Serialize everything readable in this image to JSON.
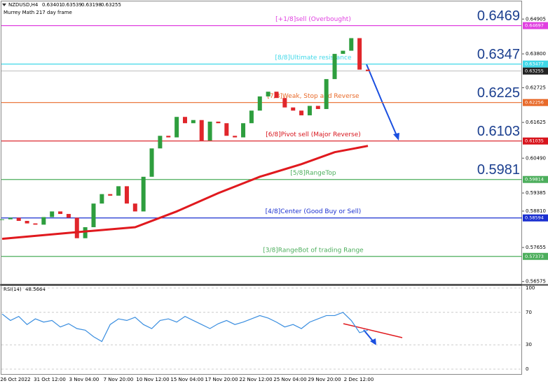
{
  "chart_data": {
    "type": "candlestick",
    "title": "NZDUSD,H4",
    "quote": [
      0.63401,
      0.63539,
      0.63198,
      0.63255
    ],
    "subtitle": "Murrey Math 217 day frame",
    "up_color": "#2e9e3e",
    "down_color": "#e0262b",
    "values": [
      0.5855,
      0.586,
      0.585,
      0.5842,
      0.5838,
      0.5862,
      0.588,
      0.5872,
      0.586,
      0.5795,
      0.583,
      0.5905,
      0.5935,
      0.593,
      0.596,
      0.5905,
      0.588,
      0.599,
      0.608,
      0.612,
      0.6115,
      0.618,
      0.616,
      0.617,
      0.6105,
      0.6165,
      0.616,
      0.612,
      0.6115,
      0.616,
      0.62,
      0.6245,
      0.626,
      0.624,
      0.621,
      0.62,
      0.6185,
      0.6215,
      0.6205,
      0.63,
      0.638,
      0.639,
      0.643,
      0.633,
      0.63255
    ],
    "moving_average": {
      "color": "#e0191e",
      "x": [
        0,
        8,
        16,
        21,
        26,
        31,
        36,
        40,
        44
      ],
      "values": [
        0.5793,
        0.5812,
        0.583,
        0.588,
        0.5938,
        0.599,
        0.603,
        0.6068,
        0.6088
      ]
    },
    "current_price": 0.63255,
    "ylim": [
      0.5648,
      0.6551
    ],
    "yticks": [
      0.64905,
      {
        "value": 0.638,
        "label": "0.63800"
      },
      0.62725,
      0.61625,
      {
        "value": 0.6049,
        "label": "0.60490"
      },
      0.59385,
      {
        "value": 0.5881,
        "label": "0.58810"
      },
      0.57655,
      0.56575
    ],
    "levels": [
      {
        "name": "[+1/8]sell (Overbought)",
        "value": 0.64697,
        "label": "0.6469",
        "color": "#e040e0"
      },
      {
        "name": "[8/8]Ultimate resistance",
        "value": 0.63477,
        "label": "0.6347",
        "color": "#40d8e8"
      },
      {
        "name": "[7/8]Weak, Stop and Reverse",
        "value": 0.62256,
        "label": "0.6225",
        "color": "#e86a2a"
      },
      {
        "name": "[6/8]Pivot sell (Major Reverse)",
        "value": 0.61035,
        "label": "0.6103",
        "color": "#d8141c"
      },
      {
        "name": "[5/8]RangeTop",
        "value": 0.59814,
        "label": "0.5981",
        "color": "#4cae5c"
      },
      {
        "name": "[4/8]Center (Good Buy or Sell)",
        "value": 0.58594,
        "color": "#1a2fd0"
      },
      {
        "name": "[3/8]RangeBot of trading Range",
        "value": 0.57373,
        "color": "#4cae5c"
      }
    ],
    "x_labels": [
      "26 Oct 2022",
      "31 Oct 12:00",
      "3 Nov 04:00",
      "7 Nov 20:00",
      "10 Nov 12:00",
      "15 Nov 04:00",
      "17 Nov 20:00",
      "22 Nov 12:00",
      "25 Nov 04:00",
      "29 Nov 20:00",
      "2 Dec 12:00"
    ],
    "rsi": {
      "title": "RSI(14)",
      "value": 48.5664,
      "color": "#3a8ee0",
      "ylim": [
        0,
        100
      ],
      "yticks": [
        100,
        70,
        30,
        0
      ],
      "values": [
        68,
        60,
        65,
        55,
        62,
        58,
        60,
        52,
        56,
        50,
        48,
        40,
        34,
        55,
        62,
        60,
        64,
        55,
        50,
        60,
        62,
        58,
        65,
        60,
        55,
        50,
        56,
        60,
        55,
        58,
        62,
        66,
        63,
        58,
        52,
        55,
        50,
        58,
        62,
        66,
        66,
        70,
        60,
        45,
        48
      ]
    }
  }
}
